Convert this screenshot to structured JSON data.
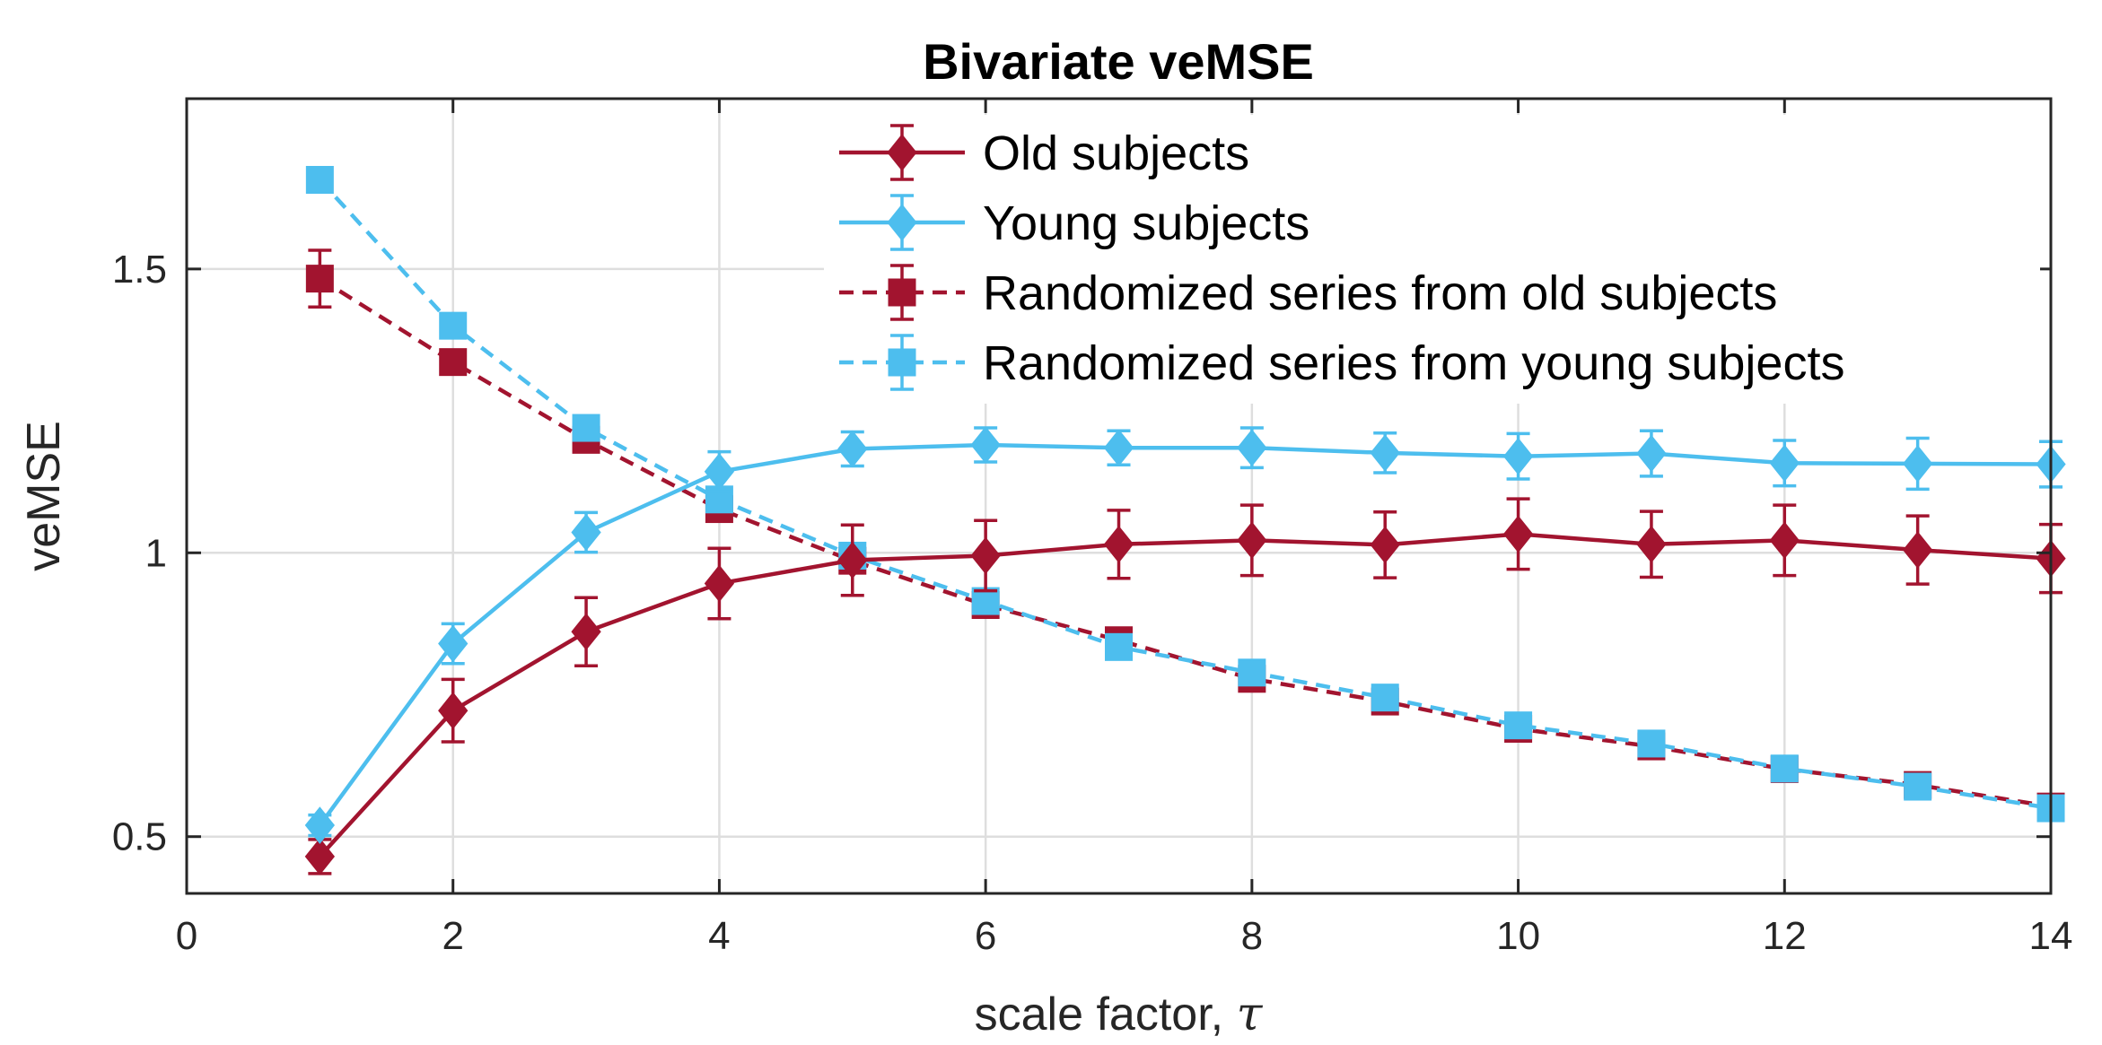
{
  "chart_data": {
    "type": "line",
    "title": "Bivariate veMSE",
    "xlabel": "scale factor, ",
    "xlabel_symbol": "τ",
    "ylabel": "veMSE",
    "xlim": [
      0,
      14
    ],
    "ylim": [
      0.4,
      1.8
    ],
    "xticks": [
      0,
      2,
      4,
      6,
      8,
      10,
      12,
      14
    ],
    "xtick_labels": [
      "0",
      "2",
      "4",
      "6",
      "8",
      "10",
      "12",
      "14"
    ],
    "yticks": [
      0.5,
      1,
      1.5
    ],
    "ytick_labels": [
      "0.5",
      "1",
      "1.5"
    ],
    "grid": true,
    "legend_position": "top-right",
    "x": [
      1,
      2,
      3,
      4,
      5,
      6,
      7,
      8,
      9,
      10,
      11,
      12,
      13,
      14
    ],
    "series": [
      {
        "name": "Old subjects",
        "color": "#A2142F",
        "line_style": "solid",
        "marker": "diamond",
        "values": [
          0.465,
          0.722,
          0.861,
          0.946,
          0.987,
          0.995,
          1.015,
          1.022,
          1.014,
          1.033,
          1.015,
          1.022,
          1.005,
          0.99
        ],
        "errors": [
          0.03,
          0.055,
          0.06,
          0.062,
          0.062,
          0.062,
          0.06,
          0.062,
          0.058,
          0.062,
          0.058,
          0.062,
          0.06,
          0.06
        ]
      },
      {
        "name": "Young subjects",
        "color": "#4DBEEE",
        "line_style": "solid",
        "marker": "diamond",
        "values": [
          0.52,
          0.84,
          1.036,
          1.143,
          1.183,
          1.19,
          1.185,
          1.185,
          1.176,
          1.17,
          1.175,
          1.158,
          1.157,
          1.156
        ],
        "errors": [
          0.018,
          0.035,
          0.035,
          0.035,
          0.03,
          0.03,
          0.03,
          0.035,
          0.035,
          0.04,
          0.04,
          0.04,
          0.045,
          0.04
        ]
      },
      {
        "name": "Randomized series from old subjects",
        "color": "#A2142F",
        "line_style": "dashed",
        "marker": "square",
        "values": [
          1.483,
          1.336,
          1.199,
          1.077,
          0.986,
          0.908,
          0.846,
          0.778,
          0.738,
          0.69,
          0.659,
          0.619,
          0.591,
          0.553
        ],
        "errors": [
          0.05,
          0.015,
          0.015,
          0.015,
          0.01,
          0.01,
          0.01,
          0.01,
          0.01,
          0.01,
          0.01,
          0.01,
          0.01,
          0.01
        ]
      },
      {
        "name": "Randomized series from young subjects",
        "color": "#4DBEEE",
        "line_style": "dashed",
        "marker": "square",
        "values": [
          1.657,
          1.4,
          1.22,
          1.094,
          0.995,
          0.915,
          0.834,
          0.789,
          0.745,
          0.696,
          0.664,
          0.62,
          0.588,
          0.55
        ],
        "errors": [
          0.01,
          0.01,
          0.01,
          0.01,
          0.01,
          0.01,
          0.01,
          0.01,
          0.01,
          0.01,
          0.01,
          0.01,
          0.01,
          0.01
        ]
      }
    ]
  }
}
